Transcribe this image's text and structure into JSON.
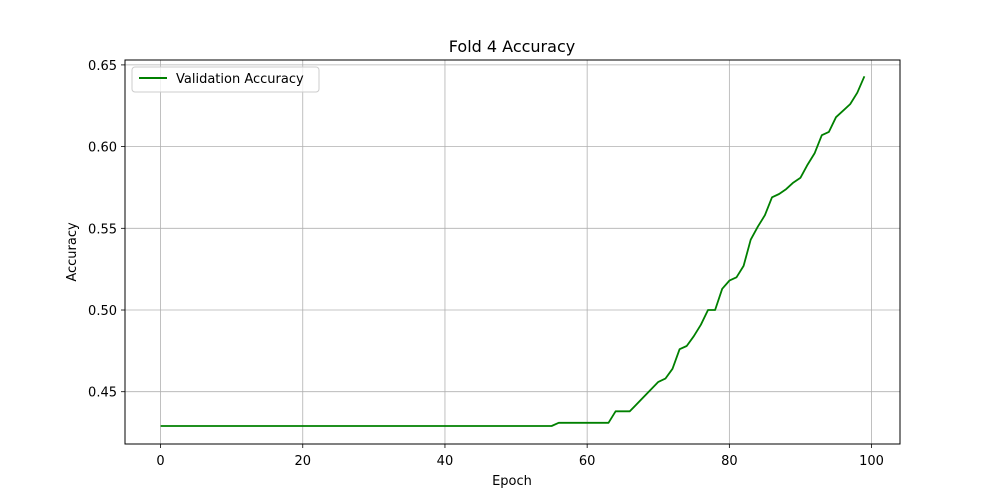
{
  "chart_data": {
    "type": "line",
    "title": "Fold 4 Accuracy",
    "xlabel": "Epoch",
    "ylabel": "Accuracy",
    "xlim": [
      -5,
      104
    ],
    "ylim": [
      0.418,
      0.653
    ],
    "xticks": [
      0,
      20,
      40,
      60,
      80,
      100
    ],
    "yticks": [
      0.45,
      0.5,
      0.55,
      0.6,
      0.65
    ],
    "ytick_labels": [
      "0.45",
      "0.50",
      "0.55",
      "0.60",
      "0.65"
    ],
    "grid": true,
    "legend_position": "top-left",
    "series": [
      {
        "name": "Validation Accuracy",
        "color": "#008000",
        "x": [
          0,
          55,
          56,
          63,
          64,
          66,
          70,
          71,
          72,
          73,
          74,
          75,
          76,
          77,
          78,
          79,
          80,
          81,
          82,
          83,
          84,
          85,
          86,
          87,
          88,
          89,
          90,
          91,
          92,
          93,
          94,
          95,
          96,
          97,
          98,
          99
        ],
        "values": [
          0.429,
          0.429,
          0.431,
          0.431,
          0.438,
          0.438,
          0.456,
          0.458,
          0.464,
          0.476,
          0.478,
          0.484,
          0.491,
          0.5,
          0.5,
          0.513,
          0.518,
          0.52,
          0.527,
          0.543,
          0.551,
          0.558,
          0.569,
          0.571,
          0.574,
          0.578,
          0.581,
          0.589,
          0.596,
          0.607,
          0.609,
          0.618,
          0.622,
          0.626,
          0.633,
          0.643
        ]
      }
    ]
  }
}
